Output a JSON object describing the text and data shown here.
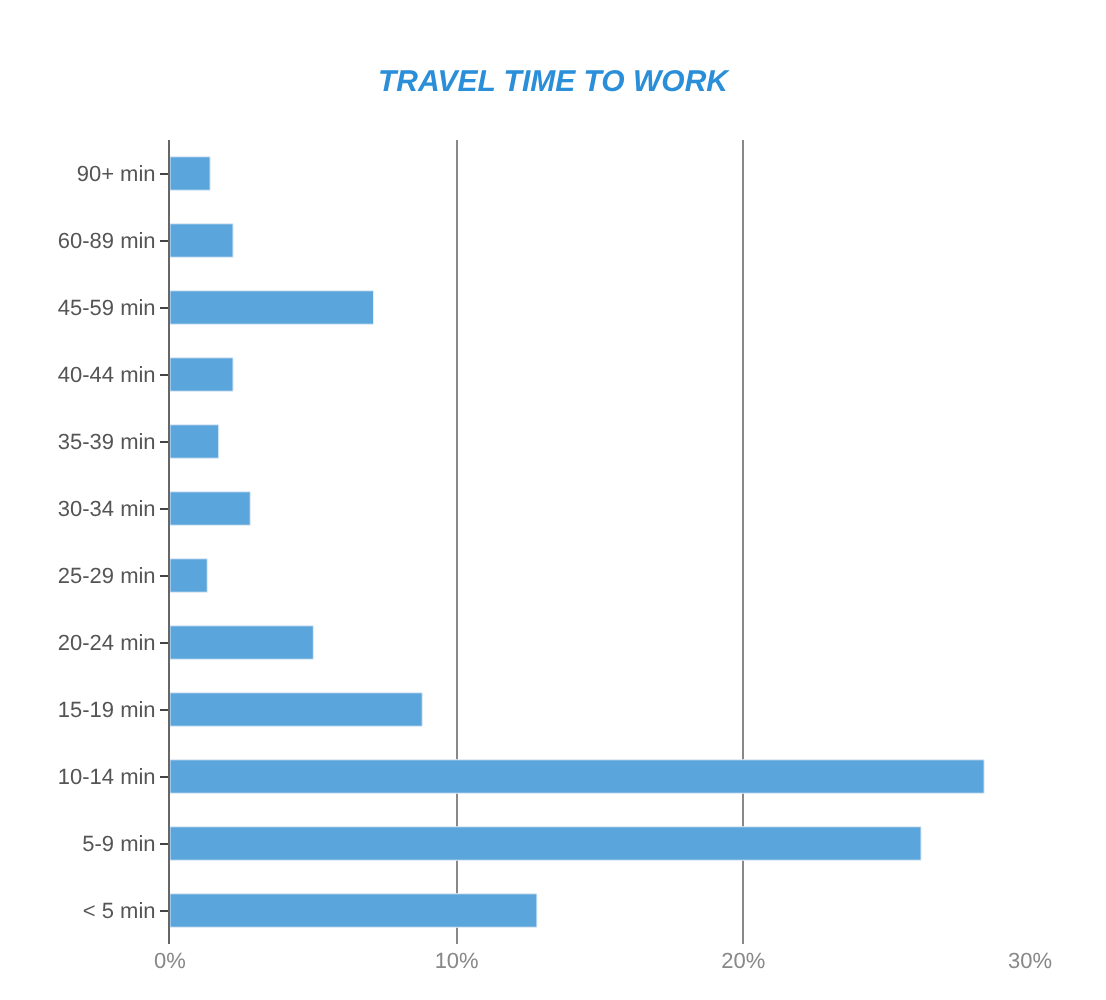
{
  "chart_data": {
    "type": "bar",
    "orientation": "horizontal",
    "title": "TRAVEL TIME TO WORK",
    "categories": [
      "90+ min",
      "60-89 min",
      "45-59 min",
      "40-44 min",
      "35-39 min",
      "30-34 min",
      "25-29 min",
      "20-24 min",
      "15-19 min",
      "10-14 min",
      "5-9 min",
      "< 5 min"
    ],
    "values": [
      1.4,
      2.2,
      7.1,
      2.2,
      1.7,
      2.8,
      1.3,
      5.0,
      8.8,
      28.4,
      26.2,
      12.8
    ],
    "color": "#5aa5dc",
    "xlim": [
      0,
      30
    ],
    "xticks": [
      {
        "value": 0,
        "label": "0%"
      },
      {
        "value": 10,
        "label": "10%"
      },
      {
        "value": 20,
        "label": "20%"
      },
      {
        "value": 30,
        "label": "30%"
      }
    ],
    "grid": "x",
    "legend": false
  }
}
